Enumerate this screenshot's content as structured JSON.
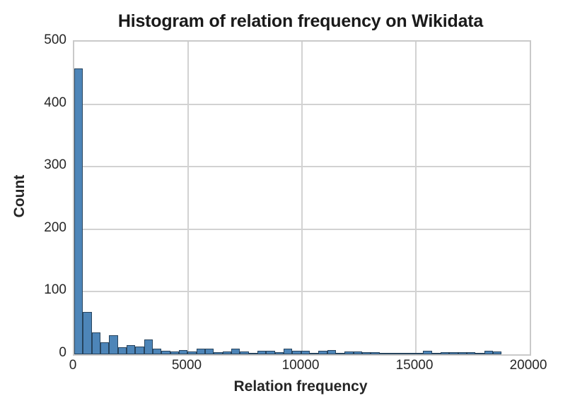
{
  "chart_data": {
    "type": "bar",
    "subtype": "histogram",
    "title": "Histogram of relation frequency on Wikidata",
    "xlabel": "Relation frequency",
    "ylabel": "Count",
    "xlim": [
      0,
      20000
    ],
    "ylim": [
      0,
      500
    ],
    "x_ticks": [
      0,
      5000,
      10000,
      15000,
      20000
    ],
    "y_ticks": [
      0,
      100,
      200,
      300,
      400,
      500
    ],
    "grid": true,
    "legend": false,
    "bin_start": 0,
    "bin_width": 383,
    "counts": [
      457,
      68,
      35,
      19,
      30,
      11,
      15,
      12,
      24,
      9,
      6,
      5,
      7,
      5,
      9,
      9,
      3,
      5,
      9,
      5,
      2,
      6,
      6,
      3,
      9,
      6,
      6,
      2,
      6,
      7,
      1,
      4,
      5,
      3,
      3,
      2,
      1,
      1,
      2,
      2,
      6,
      1,
      3,
      3,
      3,
      3,
      1,
      6,
      5
    ],
    "bar_color": "#4d85b8",
    "bar_edge_color": "#27445e",
    "grid_color": "#d2d2d2",
    "text_color": "#262626"
  }
}
